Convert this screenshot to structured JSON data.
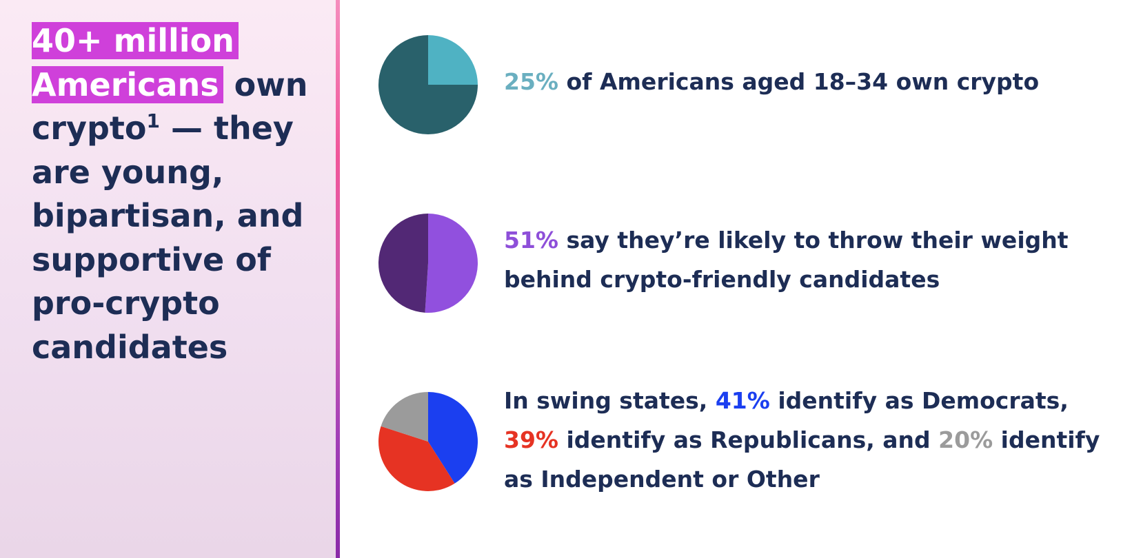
{
  "headline": {
    "highlight": "40+ million Americans",
    "text_before_sup": " own crypto",
    "sup": "1",
    "text_after_sup": " — they are young, bipartisan, and supportive of pro-crypto candidates",
    "highlight_color": "#cf40da"
  },
  "stats": [
    {
      "parts": [
        {
          "text": "25%",
          "style": "pct-teal"
        },
        {
          "text": " of Americans aged 18–34 own crypto"
        }
      ]
    },
    {
      "parts": [
        {
          "text": "51%",
          "style": "pct-purple"
        },
        {
          "text": " say they’re likely to throw their weight behind crypto-friendly candidates"
        }
      ]
    },
    {
      "parts": [
        {
          "text": "In swing states, "
        },
        {
          "text": "41%",
          "style": "pct-blue"
        },
        {
          "text": " identify as Democrats, "
        },
        {
          "text": "39%",
          "style": "pct-red"
        },
        {
          "text": " identify as Republicans, and "
        },
        {
          "text": "20%",
          "style": "pct-gray"
        },
        {
          "text": " identify as Independent or Other"
        }
      ]
    }
  ],
  "chart_data": [
    {
      "type": "pie",
      "categories": [
        "aged 18–34 own crypto",
        "other"
      ],
      "values": [
        25,
        75
      ],
      "colors": [
        "#4fb2c3",
        "#29616b"
      ]
    },
    {
      "type": "pie",
      "categories": [
        "likely to support crypto-friendly candidates",
        "other"
      ],
      "values": [
        51,
        49
      ],
      "colors": [
        "#9150de",
        "#522875"
      ]
    },
    {
      "type": "pie",
      "categories": [
        "Democrats",
        "Republicans",
        "Independent or Other"
      ],
      "values": [
        41,
        39,
        20
      ],
      "colors": [
        "#1b3ff0",
        "#e63323",
        "#9b9b9b"
      ]
    }
  ],
  "colors": {
    "text": "#1d2d55",
    "divider_top": "#f58dbd",
    "divider_bottom": "#8a2aa8"
  }
}
